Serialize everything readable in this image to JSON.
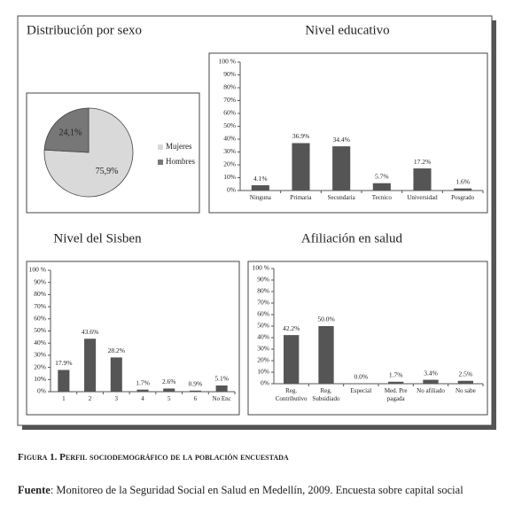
{
  "chart_data": [
    {
      "type": "pie",
      "title": "Distribución por sexo",
      "categories": [
        "Mujeres",
        "Hombres"
      ],
      "values": [
        75.9,
        24.1
      ],
      "value_labels": [
        "75,9%",
        "24,1%"
      ],
      "colors": [
        "#d9d9d9",
        "#777777"
      ]
    },
    {
      "type": "bar",
      "title": "Nivel educativo",
      "categories": [
        "Ninguna",
        "Primaria",
        "Secundaria",
        "Tecnico",
        "Universidad",
        "Posgrado"
      ],
      "values": [
        4.1,
        36.9,
        34.4,
        5.7,
        17.2,
        1.6
      ],
      "value_labels": [
        "4.1%",
        "36.9%",
        "34.4%",
        "5.7%",
        "17.2%",
        "1.6%"
      ],
      "color": "#555555",
      "ylim": [
        0,
        100
      ],
      "yticks": [
        {
          "value": 0,
          "label": "0%"
        },
        {
          "value": 10,
          "label": "10%"
        },
        {
          "value": 20,
          "label": "20%"
        },
        {
          "value": 30,
          "label": "30%"
        },
        {
          "value": 40,
          "label": "40%"
        },
        {
          "value": 50,
          "label": "50%"
        },
        {
          "value": 60,
          "label": "60%"
        },
        {
          "value": 70,
          "label": "70%"
        },
        {
          "value": 80,
          "label": "80%"
        },
        {
          "value": 90,
          "label": "90%"
        },
        {
          "value": 100,
          "label": "100 %"
        }
      ]
    },
    {
      "type": "bar",
      "title": "Nivel del Sisben",
      "categories": [
        "1",
        "2",
        "3",
        "4",
        "5",
        "6",
        "No Enc"
      ],
      "values": [
        17.9,
        43.6,
        28.2,
        1.7,
        2.6,
        0.9,
        5.1
      ],
      "value_labels": [
        "17.9%",
        "43.6%",
        "28.2%",
        "1.7%",
        "2.6%",
        "0.9%",
        "5.1%"
      ],
      "color": "#555555",
      "ylim": [
        0,
        100
      ],
      "yticks": [
        {
          "value": 0,
          "label": "0%"
        },
        {
          "value": 10,
          "label": "10%"
        },
        {
          "value": 20,
          "label": "20%"
        },
        {
          "value": 30,
          "label": "30%"
        },
        {
          "value": 40,
          "label": "40%"
        },
        {
          "value": 50,
          "label": "50%"
        },
        {
          "value": 60,
          "label": "60%"
        },
        {
          "value": 70,
          "label": "70%"
        },
        {
          "value": 80,
          "label": "80%"
        },
        {
          "value": 90,
          "label": "90%"
        },
        {
          "value": 100,
          "label": "100 %"
        }
      ]
    },
    {
      "type": "bar",
      "title": "Afiliación en salud",
      "categories": [
        "Reg.\nContributivo",
        "Reg.\nSubsidiado",
        "Especial",
        "Med. Pre\npagada",
        "No afiliado",
        "No sabe"
      ],
      "values": [
        42.2,
        50.0,
        0.0,
        1.7,
        3.4,
        2.5
      ],
      "value_labels": [
        "42.2%",
        "50.0%",
        "0.0%",
        "1.7%",
        "3.4%",
        "2.5%"
      ],
      "color": "#555555",
      "ylim": [
        0,
        100
      ],
      "yticks": [
        {
          "value": 0,
          "label": "0%"
        },
        {
          "value": 10,
          "label": "10%"
        },
        {
          "value": 20,
          "label": "20%"
        },
        {
          "value": 30,
          "label": "30%"
        },
        {
          "value": 40,
          "label": "40%"
        },
        {
          "value": 50,
          "label": "50%"
        },
        {
          "value": 60,
          "label": "60%"
        },
        {
          "value": 70,
          "label": "70%"
        },
        {
          "value": 80,
          "label": "80%"
        },
        {
          "value": 90,
          "label": "90%"
        },
        {
          "value": 100,
          "label": "100 %"
        }
      ]
    }
  ],
  "caption": "Figura 1. Perfil sociodemográfico de la población encuestada",
  "source_label": "Fuente",
  "source_text": ": Monitoreo de la Seguridad Social en Salud en Medellín, 2009. Encuesta sobre capital social"
}
